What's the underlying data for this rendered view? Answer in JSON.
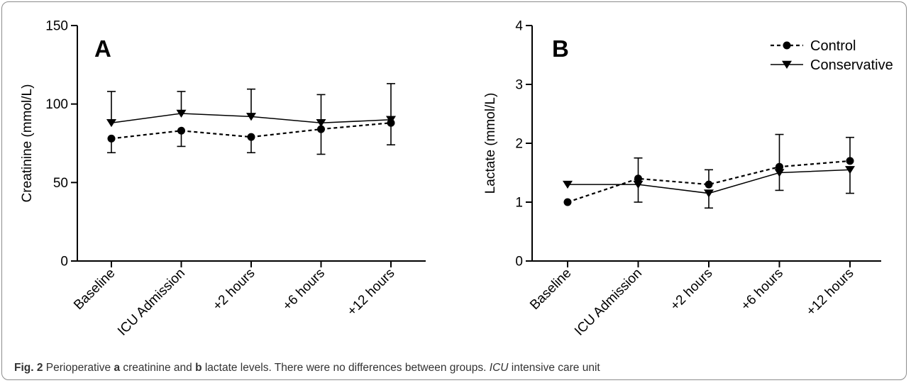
{
  "caption": {
    "fig_label": "Fig. 2",
    "t1": " Perioperative ",
    "b_a": "a",
    "t2": " creatinine and ",
    "b_b": "b",
    "t3": " lactate levels. There were no differences between groups. ",
    "icu": "ICU",
    "t4": " intensive care unit"
  },
  "colors": {
    "line": "#000000",
    "frame": "#8c8c8c"
  },
  "chart_data": [
    {
      "type": "line",
      "panel_label": "A",
      "ylabel": "Creatinine (mmol/L)",
      "xlabel": "",
      "categories": [
        "Baseline",
        "ICU Admission",
        "+2 hours",
        "+6 hours",
        "+12 hours"
      ],
      "ylim": [
        0,
        150
      ],
      "yticks": [
        0,
        50,
        100,
        150
      ],
      "ytick_labels": [
        "0",
        "50",
        "100",
        "150"
      ],
      "legend": false,
      "series": [
        {
          "name": "Control",
          "marker": "circle",
          "style": "dashed",
          "values": [
            78,
            83,
            79,
            84,
            88
          ],
          "err": [
            9,
            10,
            10,
            16,
            14
          ],
          "err_dir": "down"
        },
        {
          "name": "Conservative",
          "marker": "triangle-down",
          "style": "solid",
          "values": [
            88,
            94,
            92,
            88,
            90
          ],
          "err": [
            20,
            14,
            17.5,
            18,
            23
          ],
          "err_dir": "up"
        }
      ]
    },
    {
      "type": "line",
      "panel_label": "B",
      "ylabel": "Lactate (mmol/L)",
      "xlabel": "",
      "categories": [
        "Baseline",
        "ICU Admission",
        "+2 hours",
        "+6 hours",
        "+12 hours"
      ],
      "ylim": [
        0,
        4
      ],
      "yticks": [
        0,
        1,
        2,
        3,
        4
      ],
      "ytick_labels": [
        "0",
        "1",
        "2",
        "3",
        "4"
      ],
      "legend": true,
      "legend_position": "top-right",
      "series": [
        {
          "name": "Control",
          "marker": "circle",
          "style": "dashed",
          "values": [
            1.0,
            1.4,
            1.3,
            1.6,
            1.7
          ],
          "err": [
            0,
            0.35,
            0.25,
            0.55,
            0.4
          ],
          "err_dir": "up"
        },
        {
          "name": "Conservative",
          "marker": "triangle-down",
          "style": "solid",
          "values": [
            1.3,
            1.3,
            1.15,
            1.5,
            1.55
          ],
          "err": [
            0,
            0.3,
            0.25,
            0.3,
            0.4
          ],
          "err_dir": "down"
        }
      ]
    }
  ]
}
